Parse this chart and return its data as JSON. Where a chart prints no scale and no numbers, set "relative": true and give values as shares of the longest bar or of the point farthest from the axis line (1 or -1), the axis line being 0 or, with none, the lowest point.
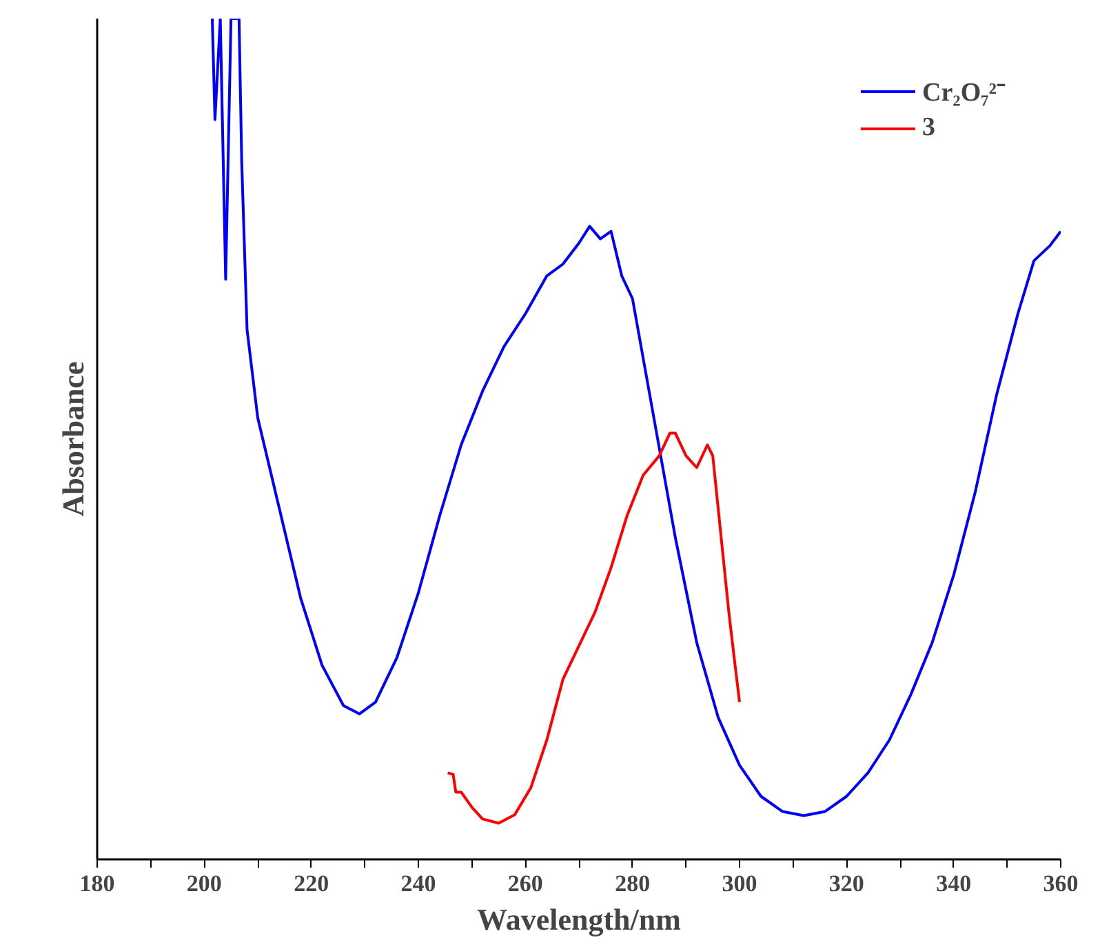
{
  "chart_data": {
    "type": "line",
    "xlabel": "Wavelength/nm",
    "ylabel": "Absorbance",
    "relative": true,
    "legend": "top right",
    "grid": false,
    "xlim": [
      180,
      360
    ],
    "xticks": [
      180,
      {
        "value": 190,
        "label": null
      },
      200,
      {
        "value": 210,
        "label": null
      },
      220,
      {
        "value": 230,
        "label": null
      },
      240,
      {
        "value": 250,
        "label": null
      },
      260,
      {
        "value": 270,
        "label": null
      },
      280,
      {
        "value": 290,
        "label": null
      },
      300,
      {
        "value": 310,
        "label": null
      },
      320,
      {
        "value": 330,
        "label": null
      },
      340,
      {
        "value": 350,
        "label": null
      },
      360
    ],
    "series": [
      {
        "name": "Cr₂O₇²⁻",
        "color": "#0000ff",
        "x": [
          201.5,
          202,
          203,
          204,
          205,
          206.5,
          207,
          208,
          210,
          214,
          218,
          222,
          226,
          229,
          232,
          236,
          240,
          244,
          248,
          252,
          256,
          260,
          264,
          267,
          270,
          272,
          274,
          276,
          278,
          280,
          282,
          284,
          288,
          292,
          296,
          300,
          304,
          308,
          312,
          316,
          320,
          324,
          328,
          332,
          336,
          340,
          344,
          348,
          352,
          355,
          358,
          360
        ],
        "values": [
          1.0,
          0.88,
          1.0,
          0.69,
          1.0,
          1.0,
          0.83,
          0.63,
          0.525,
          0.418,
          0.311,
          0.231,
          0.183,
          0.173,
          0.187,
          0.24,
          0.317,
          0.409,
          0.493,
          0.557,
          0.61,
          0.649,
          0.694,
          0.708,
          0.733,
          0.753,
          0.738,
          0.747,
          0.694,
          0.667,
          0.596,
          0.525,
          0.383,
          0.258,
          0.169,
          0.112,
          0.075,
          0.057,
          0.052,
          0.057,
          0.075,
          0.103,
          0.142,
          0.196,
          0.258,
          0.338,
          0.436,
          0.552,
          0.649,
          0.712,
          0.73,
          0.747
        ]
      },
      {
        "name": "3",
        "color": "#ff0000",
        "x": [
          245.5,
          246.5,
          247,
          248,
          250,
          252,
          255,
          258,
          261,
          264,
          267,
          270,
          273,
          276,
          279,
          282,
          285,
          287,
          288,
          290,
          292,
          294,
          295,
          296,
          298,
          299,
          300
        ],
        "values": [
          0.103,
          0.101,
          0.08,
          0.08,
          0.062,
          0.048,
          0.043,
          0.053,
          0.085,
          0.142,
          0.214,
          0.254,
          0.294,
          0.347,
          0.409,
          0.457,
          0.48,
          0.507,
          0.507,
          0.48,
          0.466,
          0.493,
          0.48,
          0.418,
          0.294,
          0.24,
          0.187
        ]
      }
    ]
  }
}
